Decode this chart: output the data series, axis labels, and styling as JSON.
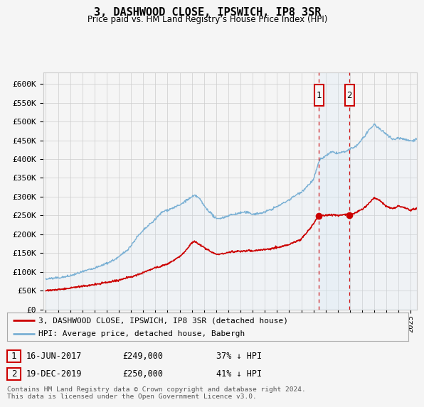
{
  "title": "3, DASHWOOD CLOSE, IPSWICH, IP8 3SR",
  "subtitle": "Price paid vs. HM Land Registry’s House Price Index (HPI)",
  "ylabel_ticks": [
    0,
    50000,
    100000,
    150000,
    200000,
    250000,
    300000,
    350000,
    400000,
    450000,
    500000,
    550000,
    600000
  ],
  "ylabel_labels": [
    "£0",
    "£50K",
    "£100K",
    "£150K",
    "£200K",
    "£250K",
    "£300K",
    "£350K",
    "£400K",
    "£450K",
    "£500K",
    "£550K",
    "£600K"
  ],
  "ylim": [
    0,
    630000
  ],
  "xlim_start": 1994.8,
  "xlim_end": 2025.5,
  "sale_dates": [
    2017.458,
    2019.958
  ],
  "sale_prices": [
    249000,
    250000
  ],
  "sale_labels": [
    "1",
    "2"
  ],
  "legend_line1": "3, DASHWOOD CLOSE, IPSWICH, IP8 3SR (detached house)",
  "legend_line2": "HPI: Average price, detached house, Babergh",
  "table_rows": [
    {
      "label": "1",
      "date": "16-JUN-2017",
      "price": "£249,000",
      "hpi": "37% ↓ HPI"
    },
    {
      "label": "2",
      "date": "19-DEC-2019",
      "price": "£250,000",
      "hpi": "41% ↓ HPI"
    }
  ],
  "footer": "Contains HM Land Registry data © Crown copyright and database right 2024.\nThis data is licensed under the Open Government Licence v3.0.",
  "red_color": "#cc0000",
  "blue_color": "#7ab0d4",
  "blue_fill_color": "#d6e8f5",
  "background_color": "#f5f5f5",
  "grid_color": "#cccccc",
  "hpi_control_years": [
    1995.0,
    1995.5,
    1996.0,
    1996.5,
    1997.0,
    1997.5,
    1998.0,
    1998.5,
    1999.0,
    1999.5,
    2000.0,
    2000.5,
    2001.0,
    2001.5,
    2002.0,
    2002.5,
    2003.0,
    2003.5,
    2004.0,
    2004.5,
    2005.0,
    2005.5,
    2006.0,
    2006.5,
    2007.0,
    2007.25,
    2007.5,
    2007.75,
    2008.0,
    2008.5,
    2009.0,
    2009.5,
    2010.0,
    2010.5,
    2011.0,
    2011.5,
    2012.0,
    2012.5,
    2013.0,
    2013.5,
    2014.0,
    2014.5,
    2015.0,
    2015.5,
    2016.0,
    2016.5,
    2017.0,
    2017.458,
    2017.5,
    2018.0,
    2018.5,
    2019.0,
    2019.5,
    2019.958,
    2020.0,
    2020.5,
    2021.0,
    2021.5,
    2022.0,
    2022.5,
    2023.0,
    2023.5,
    2024.0,
    2024.5,
    2025.0,
    2025.5
  ],
  "hpi_control_vals": [
    80000,
    82000,
    85000,
    88000,
    92000,
    97000,
    102000,
    107000,
    112000,
    118000,
    125000,
    133000,
    142000,
    155000,
    170000,
    195000,
    210000,
    225000,
    240000,
    258000,
    265000,
    272000,
    278000,
    290000,
    298000,
    302000,
    298000,
    288000,
    275000,
    258000,
    240000,
    242000,
    248000,
    252000,
    255000,
    255000,
    252000,
    254000,
    258000,
    265000,
    272000,
    282000,
    292000,
    305000,
    315000,
    330000,
    348000,
    395000,
    400000,
    410000,
    420000,
    415000,
    420000,
    425000,
    428000,
    435000,
    455000,
    475000,
    495000,
    480000,
    470000,
    455000,
    460000,
    455000,
    450000,
    455000
  ],
  "prop_control_years": [
    1995.0,
    1996.0,
    1997.0,
    1998.0,
    1999.0,
    2000.0,
    2001.0,
    2002.0,
    2003.0,
    2004.0,
    2005.0,
    2005.5,
    2006.0,
    2006.5,
    2007.0,
    2007.25,
    2007.5,
    2008.0,
    2008.5,
    2009.0,
    2009.5,
    2010.0,
    2010.5,
    2011.0,
    2012.0,
    2013.0,
    2014.0,
    2015.0,
    2016.0,
    2016.5,
    2017.0,
    2017.458,
    2017.5,
    2018.0,
    2018.5,
    2019.0,
    2019.5,
    2019.958,
    2020.0,
    2020.5,
    2021.0,
    2021.5,
    2022.0,
    2022.5,
    2023.0,
    2023.5,
    2024.0,
    2024.5,
    2025.0,
    2025.5
  ],
  "prop_control_vals": [
    50000,
    52000,
    55000,
    59000,
    63000,
    68000,
    74000,
    82000,
    95000,
    108000,
    118000,
    128000,
    138000,
    152000,
    175000,
    178000,
    172000,
    162000,
    152000,
    143000,
    145000,
    148000,
    150000,
    152000,
    153000,
    157000,
    162000,
    170000,
    185000,
    205000,
    225000,
    249000,
    249000,
    248000,
    250000,
    248000,
    250000,
    250000,
    250000,
    255000,
    265000,
    278000,
    295000,
    285000,
    270000,
    265000,
    272000,
    268000,
    260000,
    268000
  ]
}
